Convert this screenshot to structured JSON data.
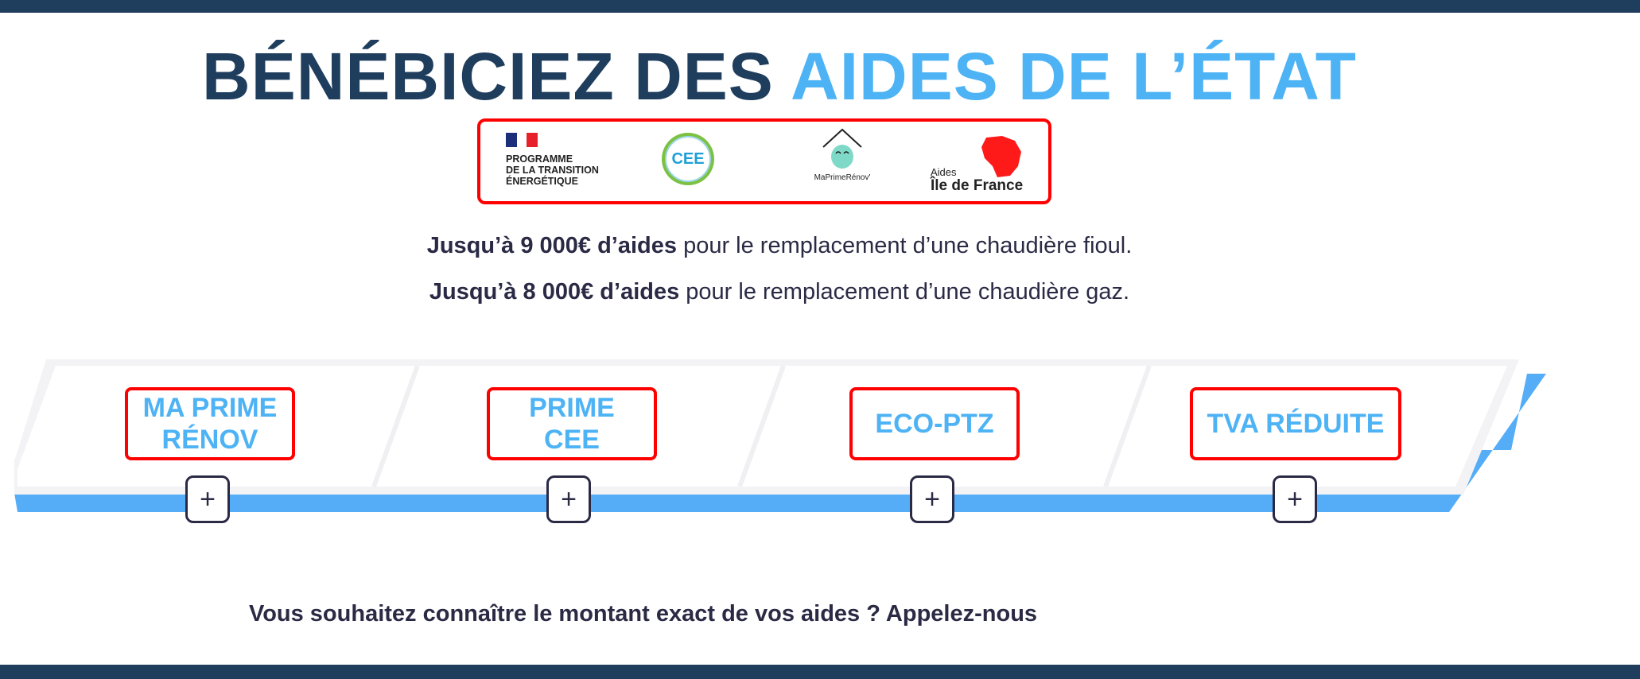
{
  "colors": {
    "navy": "#1f3d5c",
    "accent": "#4db3f5",
    "highlight": "#ff0000",
    "text": "#2a2a45"
  },
  "header": {
    "title_part1": "BÉNÉBICIEZ DES ",
    "title_part2": "AIDES DE L’ÉTAT"
  },
  "logos": {
    "pte": [
      "PROGRAMME",
      "DE LA TRANSITION",
      "ÉNERGÉTIQUE"
    ],
    "cee": "CEE",
    "maprimerenov": "MaPrimeRénov'",
    "idf_small": "Aides",
    "idf_big": "Île de France"
  },
  "intro": [
    {
      "bold": "Jusqu’à 9 000€ d’aides",
      "rest": " pour le remplacement d’une chaudière fioul."
    },
    {
      "bold": "Jusqu’à 8 000€ d’aides",
      "rest": " pour le remplacement d’une chaudière gaz."
    }
  ],
  "aids": [
    {
      "label": "MA PRIME RÉNOV",
      "icon": "plus-icon"
    },
    {
      "label": "PRIME CEE",
      "icon": "plus-icon"
    },
    {
      "label": "ECO-PTZ",
      "icon": "plus-icon"
    },
    {
      "label": "TVA RÉDUITE",
      "icon": "plus-icon"
    }
  ],
  "plus_symbol": "+",
  "cta": "Vous souhaitez connaître le montant exact de vos aides ? Appelez-nous"
}
